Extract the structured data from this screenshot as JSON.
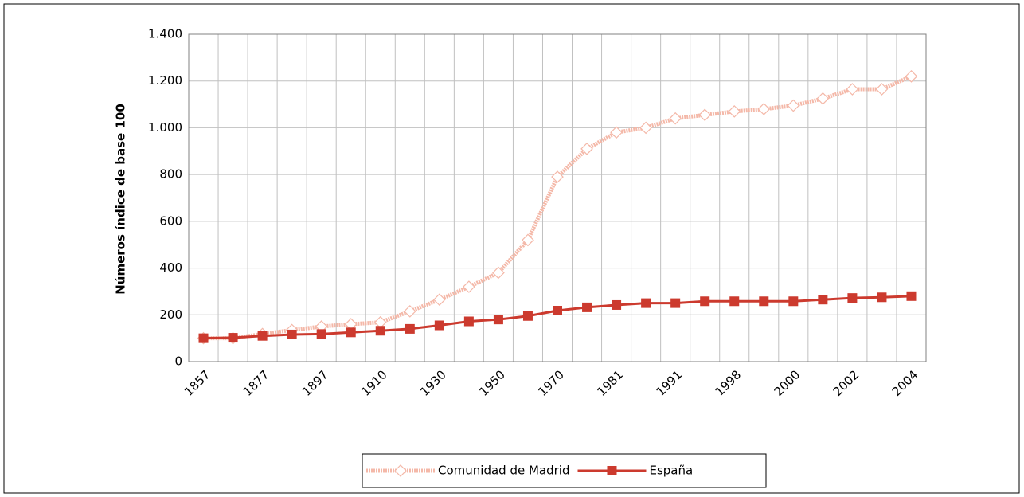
{
  "chart_data": {
    "type": "line",
    "ylabel": "Números índice de base 100",
    "categories": [
      "1857",
      null,
      "1877",
      null,
      "1897",
      null,
      "1910",
      null,
      "1930",
      null,
      "1950",
      null,
      "1970",
      null,
      "1981",
      null,
      "1991",
      null,
      "1998",
      null,
      "2000",
      null,
      "2002",
      null,
      "2004"
    ],
    "series": [
      {
        "name": "Comunidad de Madrid",
        "color": "#f4b8a8",
        "marker": "diamond",
        "values": [
          100,
          100,
          118,
          135,
          150,
          160,
          168,
          215,
          265,
          320,
          380,
          520,
          790,
          910,
          980,
          1000,
          1040,
          1055,
          1070,
          1080,
          1095,
          1125,
          1165,
          1165,
          1220
        ]
      },
      {
        "name": "España",
        "color": "#cc3a2e",
        "marker": "square",
        "values": [
          100,
          102,
          110,
          116,
          118,
          125,
          132,
          140,
          155,
          172,
          180,
          195,
          218,
          232,
          242,
          250,
          250,
          258,
          258,
          258,
          258,
          265,
          272,
          275,
          280
        ]
      }
    ],
    "ylim": [
      0,
      1400
    ],
    "yticks": [
      0,
      200,
      400,
      600,
      800,
      {
        "value": 1000,
        "label": "1.000"
      },
      {
        "value": 1200,
        "label": "1.200"
      },
      {
        "value": 1400,
        "label": "1.400"
      }
    ],
    "grid": true,
    "legend": "bottom"
  }
}
